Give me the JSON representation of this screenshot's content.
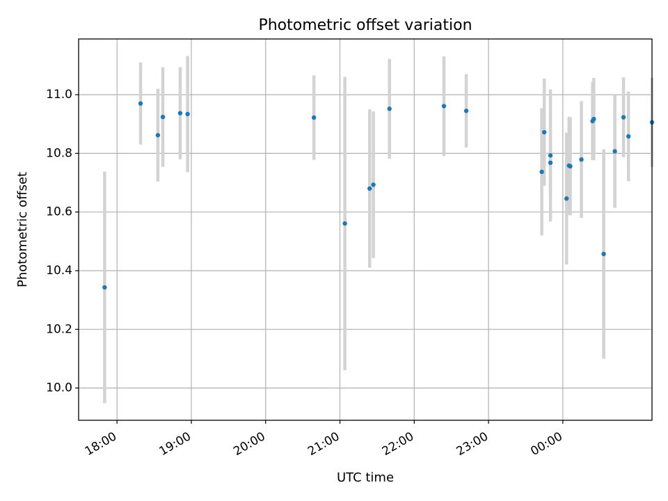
{
  "chart_data": {
    "type": "scatter",
    "title": "Photometric offset variation",
    "xlabel": "UTC time",
    "ylabel": "Photometric offset",
    "x_axis_type": "time",
    "xlim": [
      "17:29",
      "01:12"
    ],
    "ylim": [
      9.89,
      11.19
    ],
    "x_ticks": [
      {
        "time": "18:00",
        "label": "18:00"
      },
      {
        "time": "19:00",
        "label": "19:00"
      },
      {
        "time": "20:00",
        "label": "20:00"
      },
      {
        "time": "21:00",
        "label": "21:00"
      },
      {
        "time": "22:00",
        "label": "22:00"
      },
      {
        "time": "23:00",
        "label": "23:00"
      },
      {
        "time": "00:00",
        "label": "00:00"
      }
    ],
    "y_ticks": [
      {
        "value": 10.0,
        "label": "10.0"
      },
      {
        "value": 10.2,
        "label": "10.2"
      },
      {
        "value": 10.4,
        "label": "10.4"
      },
      {
        "value": 10.6,
        "label": "10.6"
      },
      {
        "value": 10.8,
        "label": "10.8"
      },
      {
        "value": 11.0,
        "label": "11.0"
      }
    ],
    "grid": true,
    "marker_color": "#1f77b4",
    "errorbar_color": "#d3d3d3",
    "points": [
      {
        "time": "17:50",
        "y": 10.343,
        "err": 0.395
      },
      {
        "time": "18:19",
        "y": 10.97,
        "err": 0.14
      },
      {
        "time": "18:33",
        "y": 10.862,
        "err": 0.158
      },
      {
        "time": "18:37",
        "y": 10.924,
        "err": 0.17
      },
      {
        "time": "18:51",
        "y": 10.937,
        "err": 0.157
      },
      {
        "time": "18:57",
        "y": 10.934,
        "err": 0.198
      },
      {
        "time": "20:39",
        "y": 10.922,
        "err": 0.144
      },
      {
        "time": "21:04",
        "y": 10.561,
        "err": 0.5
      },
      {
        "time": "21:24",
        "y": 10.68,
        "err": 0.27
      },
      {
        "time": "21:27",
        "y": 10.693,
        "err": 0.25
      },
      {
        "time": "21:40",
        "y": 10.952,
        "err": 0.17
      },
      {
        "time": "22:24",
        "y": 10.961,
        "err": 0.17
      },
      {
        "time": "22:42",
        "y": 10.945,
        "err": 0.125
      },
      {
        "time": "23:43",
        "y": 10.737,
        "err": 0.217
      },
      {
        "time": "23:45",
        "y": 10.872,
        "err": 0.183
      },
      {
        "time": "23:50",
        "y": 10.793,
        "err": 0.225
      },
      {
        "time": "23:50",
        "y": 10.768,
        "err": 0.11
      },
      {
        "time": "00:03",
        "y": 10.646,
        "err": 0.225
      },
      {
        "time": "00:05",
        "y": 10.758,
        "err": 0.167
      },
      {
        "time": "00:06",
        "y": 10.756,
        "err": 0.167
      },
      {
        "time": "00:15",
        "y": 10.779,
        "err": 0.199
      },
      {
        "time": "00:24",
        "y": 10.91,
        "err": 0.133
      },
      {
        "time": "00:25",
        "y": 10.917,
        "err": 0.14
      },
      {
        "time": "00:33",
        "y": 10.457,
        "err": 0.357
      },
      {
        "time": "00:42",
        "y": 10.807,
        "err": 0.193
      },
      {
        "time": "00:49",
        "y": 10.923,
        "err": 0.136
      },
      {
        "time": "00:53",
        "y": 10.858,
        "err": 0.153
      },
      {
        "time": "01:12",
        "y": 10.906,
        "err": 0.152
      }
    ]
  }
}
